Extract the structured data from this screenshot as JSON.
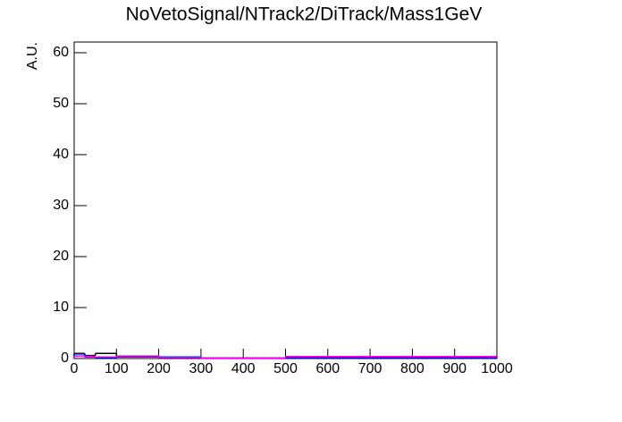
{
  "chart_data": {
    "type": "histogram",
    "title": "NoVetoSignal/NTrack2/DiTrack/Mass1GeV",
    "y_label": "A.U.",
    "bins": [
      0,
      25,
      50,
      100,
      200,
      300,
      500,
      1000
    ],
    "series": [
      {
        "color": "#000000",
        "values": [
          1.0,
          0.6,
          1.0,
          0.4,
          0.2,
          0.1,
          0.3
        ]
      },
      {
        "color": "#0000ff",
        "values": [
          0.9,
          0.3,
          0.2,
          0.3,
          0.3,
          0.1,
          0.2
        ]
      },
      {
        "color": "#ff00ff",
        "values": [
          0.5,
          0.4,
          0.3,
          0.5,
          0.2,
          0.1,
          0.4
        ]
      }
    ],
    "xlim": [
      0,
      1000
    ],
    "xticks": [
      0,
      100,
      200,
      300,
      400,
      500,
      600,
      700,
      800,
      900,
      1000
    ],
    "ylim": [
      0,
      62.1
    ],
    "yticks": [
      0,
      10,
      20,
      30,
      40,
      50,
      60
    ]
  }
}
